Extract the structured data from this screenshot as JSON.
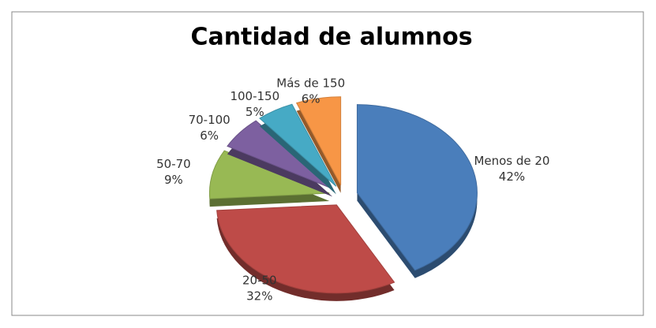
{
  "chart_data": {
    "type": "pie",
    "title": "Cantidad de alumnos",
    "categories": [
      "Menos de 20",
      "20-50",
      "50-70",
      "70-100",
      "100-150",
      "Más de 150"
    ],
    "values": [
      42,
      32,
      9,
      6,
      5,
      6
    ],
    "value_labels": [
      "42%",
      "32%",
      "9%",
      "6%",
      "5%",
      "6%"
    ],
    "colors": [
      "#4a7ebb",
      "#be4b48",
      "#98b954",
      "#7d60a0",
      "#46aac5",
      "#f79646"
    ]
  }
}
